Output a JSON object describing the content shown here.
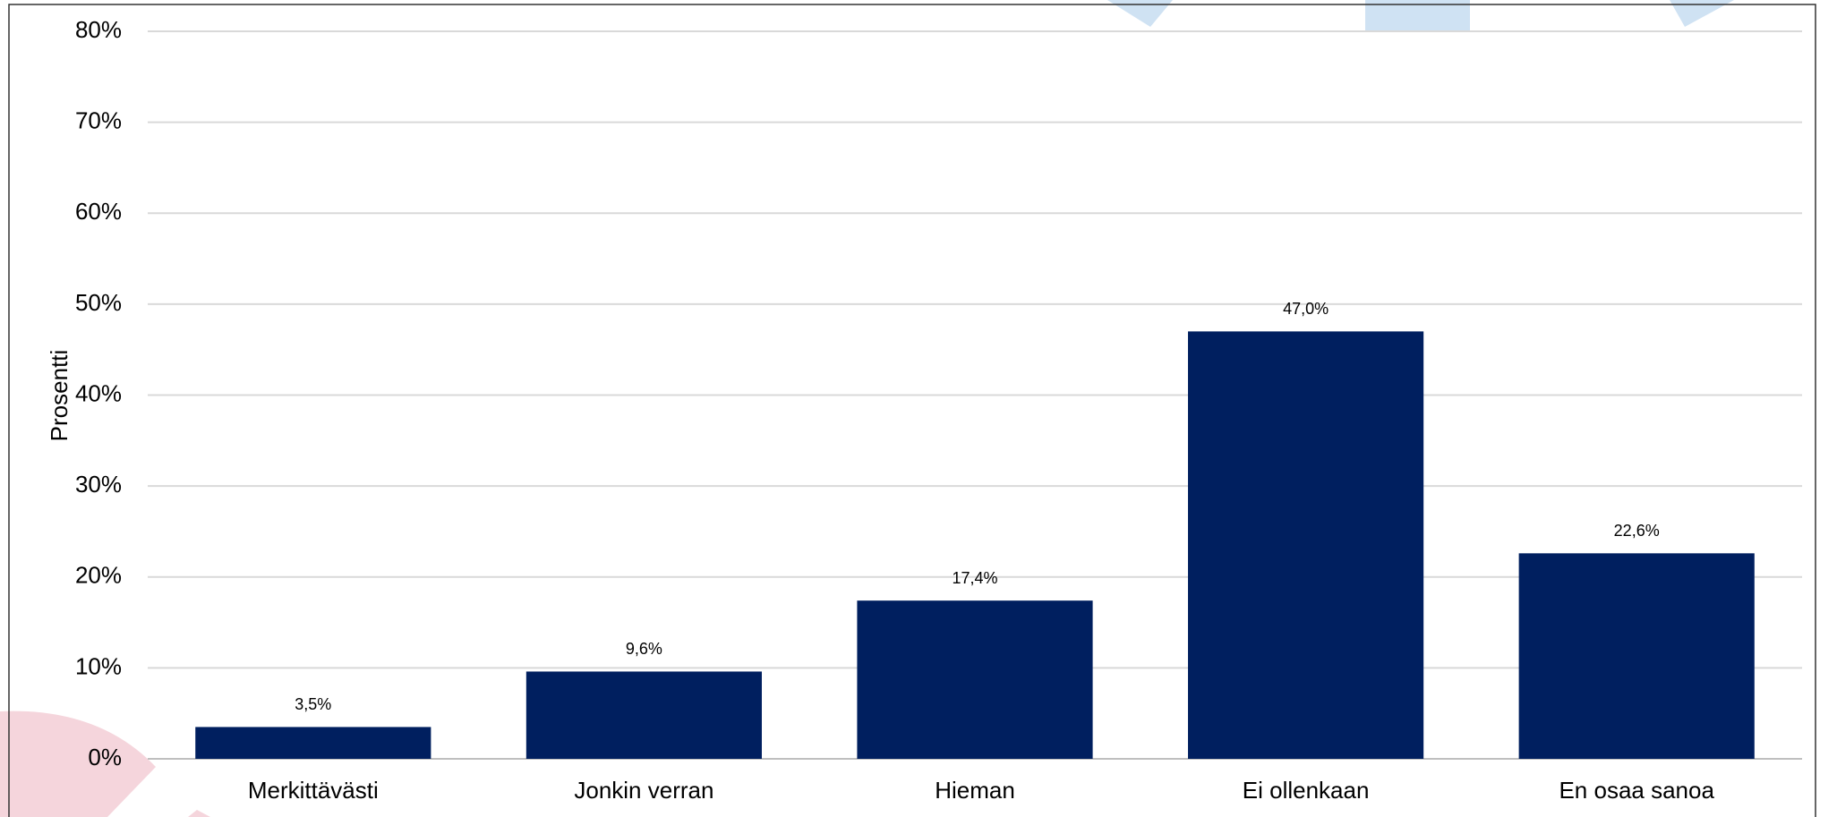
{
  "chart_data": {
    "type": "bar",
    "y_label": "Prosentti",
    "categories": [
      "Merkittävästi",
      "Jonkin verran",
      "Hieman",
      "Ei ollenkaan",
      "En osaa sanoa"
    ],
    "values": [
      3.5,
      9.6,
      17.4,
      47.0,
      22.6
    ],
    "value_labels": [
      "3,5%",
      "9,6%",
      "17,4%",
      "47,0%",
      "22,6%"
    ],
    "color": "#001f5f",
    "ylim": [
      0,
      80
    ],
    "yticks": [
      {
        "value": 0,
        "label": "0%"
      },
      {
        "value": 10,
        "label": "10%"
      },
      {
        "value": 20,
        "label": "20%"
      },
      {
        "value": 30,
        "label": "30%"
      },
      {
        "value": 40,
        "label": "40%"
      },
      {
        "value": 50,
        "label": "50%"
      },
      {
        "value": 60,
        "label": "60%"
      },
      {
        "value": 70,
        "label": "70%"
      },
      {
        "value": 80,
        "label": "80%"
      }
    ],
    "grid": true
  }
}
